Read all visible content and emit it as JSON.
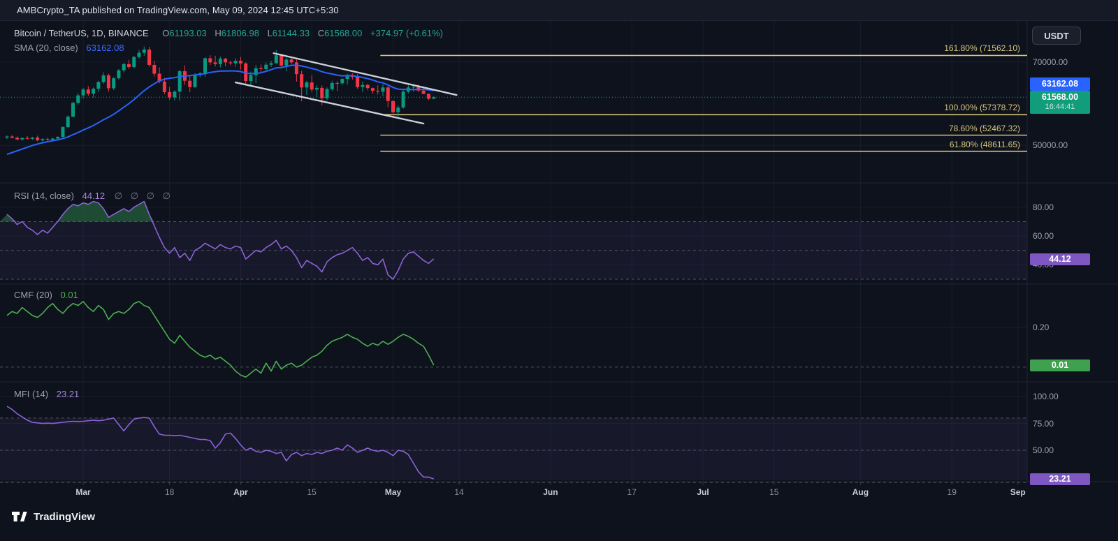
{
  "header": {
    "publish_text": "AMBCrypto_TA published on TradingView.com, May 09, 2024 12:45 UTC+5:30"
  },
  "toolbar": {
    "currency_button": "USDT"
  },
  "footer": {
    "brand": "TradingView"
  },
  "main_legend": {
    "symbol": "Bitcoin / TetherUS, 1D, BINANCE",
    "ohlc": [
      {
        "label": "O",
        "value": "61193.03"
      },
      {
        "label": "H",
        "value": "61806.98"
      },
      {
        "label": "L",
        "value": "61144.33"
      },
      {
        "label": "C",
        "value": "61568.00"
      }
    ],
    "change": "+374.97 (+0.61%)",
    "sma_label": "SMA (20, close)",
    "sma_value": "63162.08"
  },
  "rsi_legend": {
    "label": "RSI (14, close)",
    "value": "44.12",
    "empties": "∅ ∅ ∅ ∅"
  },
  "cmf_legend": {
    "label": "CMF (20)",
    "value": "0.01"
  },
  "mfi_legend": {
    "label": "MFI (14)",
    "value": "23.21"
  },
  "price_labels": {
    "sma_box": "63162.08",
    "last_price": "61568.00",
    "countdown": "16:44:41",
    "rsi_box": "44.12",
    "cmf_box": "0.01",
    "mfi_box": "23.21"
  },
  "colors": {
    "up": "#089981",
    "down": "#f23645",
    "sma": "#2962ff",
    "rsi_line": "#8c63d6",
    "mfi_line": "#8c63d6",
    "cmf_line": "#4caf50",
    "fib": "#d6c57c",
    "channel": "#dde1ea",
    "price_line": "#1ea584",
    "band_fill": "rgba(140,99,214,0.08)",
    "overbought_fill": "rgba(42,122,72,0.55)",
    "dash": "#5c6070",
    "grid": "#181d2b",
    "separator": "#1f2433",
    "box_sma": "#2962ff",
    "box_price": "#119d7b",
    "box_purple": "#7e57c2",
    "box_green": "#3fa14f"
  },
  "chart_data": {
    "type": "candlestick+indicators",
    "title": "Bitcoin / TetherUS, 1D, BINANCE",
    "interval": "1D",
    "start_date": "2024-02-15",
    "last_candle_ohlc": {
      "open": 61193.03,
      "high": 61806.98,
      "low": 61144.33,
      "close": 61568.0,
      "change": 374.97,
      "change_pct": 0.61
    },
    "current_price": 61568.0,
    "sma_period": 20,
    "sma_last": 63162.08,
    "price_axis_ticks": [
      70000,
      50000
    ],
    "main_range": {
      "max": 79000,
      "min": 41700
    },
    "candles": [
      [
        51900,
        52400,
        51500,
        52150
      ],
      [
        52150,
        52500,
        51700,
        51850
      ],
      [
        51850,
        52150,
        51200,
        51450
      ],
      [
        51450,
        51950,
        51150,
        51800
      ],
      [
        51800,
        52250,
        51450,
        51600
      ],
      [
        51600,
        52050,
        51300,
        51900
      ],
      [
        51900,
        52350,
        51000,
        51250
      ],
      [
        51250,
        51750,
        50850,
        51550
      ],
      [
        51550,
        51950,
        51150,
        51350
      ],
      [
        51350,
        51850,
        51000,
        51650
      ],
      [
        51650,
        52200,
        51300,
        52050
      ],
      [
        52050,
        54600,
        51900,
        54400
      ],
      [
        54400,
        57200,
        54200,
        56900
      ],
      [
        56900,
        60500,
        56700,
        60200
      ],
      [
        60200,
        62500,
        59800,
        62000
      ],
      [
        62000,
        63800,
        61200,
        63400
      ],
      [
        63400,
        64200,
        61900,
        62400
      ],
      [
        62400,
        63900,
        61500,
        63600
      ],
      [
        63600,
        65500,
        62800,
        65200
      ],
      [
        65200,
        67500,
        64800,
        66800
      ],
      [
        66800,
        67200,
        62900,
        63700
      ],
      [
        63700,
        66400,
        63300,
        66100
      ],
      [
        66100,
        68300,
        65800,
        68000
      ],
      [
        68000,
        69800,
        67500,
        69500
      ],
      [
        69500,
        70500,
        68300,
        68800
      ],
      [
        68800,
        71500,
        68500,
        71200
      ],
      [
        71200,
        72900,
        70800,
        72200
      ],
      [
        72200,
        73700,
        71500,
        73000
      ],
      [
        73000,
        73650,
        68900,
        69300
      ],
      [
        69300,
        70300,
        66500,
        67200
      ],
      [
        67200,
        68700,
        64900,
        65300
      ],
      [
        65300,
        66200,
        62300,
        62800
      ],
      [
        62800,
        64000,
        60900,
        61500
      ],
      [
        61500,
        63200,
        60770,
        62900
      ],
      [
        62900,
        68100,
        60800,
        67800
      ],
      [
        67800,
        69200,
        64500,
        65500
      ],
      [
        65500,
        66800,
        62750,
        64000
      ],
      [
        64000,
        67300,
        63800,
        67000
      ],
      [
        67000,
        67600,
        66300,
        67300
      ],
      [
        67300,
        71100,
        66400,
        70900
      ],
      [
        70900,
        71600,
        69300,
        69900
      ],
      [
        69900,
        71500,
        68900,
        69500
      ],
      [
        69500,
        71300,
        68700,
        70800
      ],
      [
        70800,
        71000,
        69000,
        69900
      ],
      [
        69900,
        70300,
        69200,
        69700
      ],
      [
        69700,
        70900,
        68900,
        70300
      ],
      [
        70300,
        71200,
        68200,
        69650
      ],
      [
        69650,
        69900,
        64600,
        65450
      ],
      [
        65450,
        67700,
        64500,
        66850
      ],
      [
        66850,
        69300,
        64900,
        68500
      ],
      [
        68500,
        69400,
        67500,
        68300
      ],
      [
        68300,
        69900,
        68000,
        69350
      ],
      [
        69350,
        70300,
        68800,
        69700
      ],
      [
        69700,
        72800,
        69550,
        71600
      ],
      [
        71600,
        72000,
        68500,
        69150
      ],
      [
        69150,
        71100,
        67800,
        70600
      ],
      [
        70600,
        71000,
        69500,
        69900
      ],
      [
        69900,
        70700,
        65300,
        67100
      ],
      [
        67100,
        67900,
        60600,
        63900
      ],
      [
        63900,
        65500,
        62100,
        65100
      ],
      [
        65100,
        66800,
        62800,
        63400
      ],
      [
        63400,
        64400,
        61600,
        63800
      ],
      [
        63800,
        64400,
        59600,
        61300
      ],
      [
        61300,
        63900,
        60800,
        63500
      ],
      [
        63500,
        65500,
        63100,
        64950
      ],
      [
        64950,
        65400,
        63000,
        64900
      ],
      [
        64900,
        66100,
        64500,
        65950
      ],
      [
        65950,
        67200,
        64550,
        66850
      ],
      [
        66850,
        67250,
        65800,
        66450
      ],
      [
        66450,
        67100,
        63600,
        64000
      ],
      [
        64000,
        65300,
        62800,
        64500
      ],
      [
        64500,
        64800,
        63250,
        63750
      ],
      [
        63750,
        63900,
        62400,
        63100
      ],
      [
        63100,
        64400,
        62200,
        62900
      ],
      [
        62900,
        64700,
        61800,
        63900
      ],
      [
        63900,
        64200,
        59200,
        60650
      ],
      [
        60650,
        60850,
        56550,
        57950
      ],
      [
        57950,
        59600,
        56900,
        59100
      ],
      [
        59100,
        63350,
        58800,
        62900
      ],
      [
        62900,
        64500,
        62500,
        63900
      ],
      [
        63900,
        64400,
        62900,
        64050
      ],
      [
        64050,
        64600,
        62800,
        63150
      ],
      [
        63150,
        64000,
        62300,
        62350
      ],
      [
        62350,
        62500,
        60900,
        61200
      ],
      [
        61193.03,
        61806.98,
        61144.33,
        61568.0
      ]
    ],
    "sma_seed_closes": [
      42600,
      42900,
      43100,
      43300,
      43100,
      43500,
      44500,
      45300,
      46200,
      47100,
      47800,
      48300,
      48900,
      49300,
      51500,
      52000,
      51800,
      52200,
      51900,
      52300
    ],
    "indicators": {
      "rsi": {
        "name": "RSI (14, close)",
        "last": 44.12,
        "bands": [
          70,
          50,
          30
        ],
        "axis_ticks": [
          80,
          60,
          40
        ],
        "range": {
          "max": 93,
          "min": 29
        },
        "values": [
          75,
          72,
          68,
          70,
          66,
          64,
          61,
          64,
          62,
          66,
          70,
          75,
          79,
          82,
          81,
          83,
          82,
          84,
          83,
          79,
          73,
          75,
          77,
          79,
          77,
          80,
          82,
          84,
          75,
          67,
          59,
          52,
          48,
          52,
          45,
          48,
          43,
          50,
          52,
          55,
          53,
          51,
          54,
          52,
          51,
          53,
          52,
          44,
          47,
          50,
          49,
          52,
          54,
          57,
          51,
          53,
          50,
          45,
          38,
          43,
          41,
          39,
          35,
          42,
          45,
          47,
          48,
          50,
          52,
          48,
          43,
          45,
          41,
          40,
          44,
          33,
          30,
          36,
          44,
          48,
          49,
          46,
          43,
          41,
          44.12
        ]
      },
      "cmf": {
        "name": "CMF (20)",
        "last": 0.01,
        "bands": [
          0
        ],
        "axis_ticks": [
          0.2
        ],
        "range": {
          "max": 0.4,
          "min": -0.06
        },
        "values": [
          0.26,
          0.28,
          0.27,
          0.3,
          0.28,
          0.26,
          0.25,
          0.27,
          0.3,
          0.32,
          0.29,
          0.27,
          0.3,
          0.32,
          0.31,
          0.33,
          0.3,
          0.28,
          0.31,
          0.29,
          0.24,
          0.27,
          0.28,
          0.27,
          0.29,
          0.32,
          0.33,
          0.31,
          0.3,
          0.26,
          0.22,
          0.18,
          0.14,
          0.12,
          0.16,
          0.13,
          0.1,
          0.08,
          0.06,
          0.05,
          0.06,
          0.04,
          0.05,
          0.03,
          0.01,
          -0.02,
          -0.04,
          -0.05,
          -0.03,
          -0.01,
          -0.03,
          0.02,
          -0.02,
          0.03,
          -0.01,
          0.01,
          0.02,
          0.0,
          0.01,
          0.03,
          0.05,
          0.06,
          0.08,
          0.11,
          0.13,
          0.14,
          0.15,
          0.165,
          0.15,
          0.14,
          0.12,
          0.105,
          0.12,
          0.11,
          0.13,
          0.115,
          0.13,
          0.15,
          0.165,
          0.155,
          0.14,
          0.12,
          0.105,
          0.06,
          0.01
        ]
      },
      "mfi": {
        "name": "MFI (14)",
        "last": 23.21,
        "bands": [
          80,
          50,
          20
        ],
        "axis_ticks": [
          100,
          75,
          50
        ],
        "range": {
          "max": 110.5,
          "min": 22
        },
        "values": [
          91,
          88,
          84,
          81,
          78,
          76,
          75.5,
          75,
          75.2,
          75,
          75.5,
          76,
          76.5,
          77,
          76.8,
          77,
          77.5,
          78,
          77.5,
          78,
          79,
          80,
          74,
          68,
          74,
          79,
          80,
          80.5,
          80,
          72,
          65,
          64,
          64,
          63.5,
          64,
          63,
          62,
          61,
          60,
          60,
          59,
          52,
          57,
          65,
          66,
          61,
          55,
          50,
          52,
          49,
          48,
          50,
          49,
          47,
          48,
          40,
          46,
          48,
          45,
          47,
          46,
          48,
          47,
          49,
          50,
          52,
          50,
          55,
          52,
          48,
          50,
          52,
          50,
          49,
          50,
          48,
          45,
          50,
          49,
          46,
          38,
          30,
          25,
          25,
          23.21
        ]
      }
    },
    "fib_levels": [
      {
        "label": "161.80% (71562.10)",
        "value": 71562.1,
        "pct": 161.8
      },
      {
        "label": "100.00% (57378.72)",
        "value": 57378.72,
        "pct": 100.0
      },
      {
        "label": "78.60% (52467.32)",
        "value": 52467.32,
        "pct": 78.6
      },
      {
        "label": "61.80% (48611.65)",
        "value": 48611.65,
        "pct": 61.8
      }
    ],
    "fib_start_day": 73.5,
    "channel": {
      "upper": {
        "d1": 52.5,
        "p1": 72100,
        "d2": 88.5,
        "p2": 62100
      },
      "lower": {
        "d1": 45.0,
        "p1": 65100,
        "d2": 82.0,
        "p2": 55250
      }
    },
    "time_ticks": [
      {
        "label": "Mar",
        "day": 15,
        "major": true
      },
      {
        "label": "18",
        "day": 32,
        "major": false
      },
      {
        "label": "Apr",
        "day": 46,
        "major": true
      },
      {
        "label": "15",
        "day": 60,
        "major": false
      },
      {
        "label": "May",
        "day": 76,
        "major": true
      },
      {
        "label": "14",
        "day": 89,
        "major": false
      },
      {
        "label": "Jun",
        "day": 107,
        "major": true
      },
      {
        "label": "17",
        "day": 123,
        "major": false
      },
      {
        "label": "Jul",
        "day": 137,
        "major": true
      },
      {
        "label": "15",
        "day": 151,
        "major": false
      },
      {
        "label": "Aug",
        "day": 168,
        "major": true
      },
      {
        "label": "19",
        "day": 186,
        "major": false
      },
      {
        "label": "Sep",
        "day": 199,
        "major": true
      }
    ]
  }
}
